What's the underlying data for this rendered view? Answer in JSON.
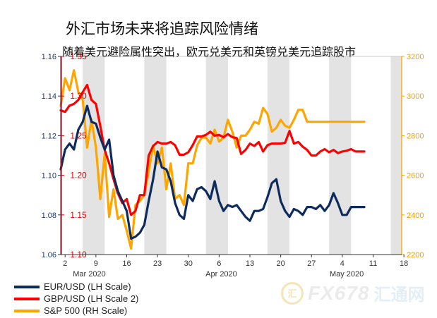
{
  "title": "外汇市场未来将追踪风险情绪",
  "subtitle": "随着美元避险属性突出，欧元兑美元和英镑兑美元追踪股市",
  "watermark": {
    "brand": "FX678",
    "cn": "汇通网",
    "badge": "汇"
  },
  "chart_data": {
    "type": "line",
    "x_tick_labels": [
      "2",
      "9",
      "16",
      "23",
      "30",
      "6",
      "13",
      "20",
      "27",
      "4",
      "11",
      "18"
    ],
    "month_labels": [
      {
        "label": "Mar 2020",
        "x": 6.5
      },
      {
        "label": "Apr 2020",
        "x": 36.5
      },
      {
        "label": "May 2020",
        "x": 65
      }
    ],
    "xlim": [
      0,
      77.5
    ],
    "shaded_weeks": [
      [
        5,
        10
      ],
      [
        19,
        24
      ],
      [
        33,
        38
      ],
      [
        47,
        52
      ],
      [
        61,
        66
      ],
      [
        75,
        77.5
      ]
    ],
    "axes": {
      "left_outer": {
        "name": "EUR/USD",
        "ylim": [
          1.06,
          1.16
        ],
        "ticks": [
          1.06,
          1.08,
          1.1,
          1.12,
          1.14,
          1.16
        ],
        "decimals": 2,
        "color": "#1f3864"
      },
      "left_inner": {
        "name": "GBP/USD",
        "ylim": [
          1.1,
          1.35
        ],
        "ticks": [
          1.1,
          1.15,
          1.2,
          1.25,
          1.3,
          1.35
        ],
        "decimals": 2,
        "color": "#e00000"
      },
      "right": {
        "name": "S&P 500",
        "ylim": [
          2200,
          3200
        ],
        "ticks": [
          2200,
          2400,
          2600,
          2800,
          3000,
          3200
        ],
        "decimals": 0,
        "color": "#f7a000"
      }
    },
    "series": [
      {
        "name": "EUR/USD (LH Scale)",
        "axis": "left_outer",
        "color": "#0d2b5c",
        "x": [
          0,
          1,
          2,
          3,
          4,
          5,
          6,
          7,
          8,
          9,
          10,
          11,
          12,
          13,
          14,
          15,
          16,
          17,
          18,
          19,
          20,
          21,
          22,
          23,
          24,
          25,
          26,
          27,
          28,
          29,
          30,
          31,
          32,
          33,
          34,
          35,
          36,
          37,
          38,
          39,
          40,
          41,
          42,
          43,
          44,
          45,
          46,
          47,
          48,
          49,
          50,
          51,
          52,
          53,
          54,
          55,
          56,
          57,
          58,
          59,
          60,
          61,
          62,
          63,
          64,
          65,
          66,
          67,
          68,
          69
        ],
        "values": [
          1.103,
          1.113,
          1.116,
          1.113,
          1.123,
          1.127,
          1.135,
          1.127,
          1.126,
          1.119,
          1.113,
          1.118,
          1.1,
          1.092,
          1.087,
          1.082,
          1.068,
          1.069,
          1.071,
          1.075,
          1.087,
          1.098,
          1.112,
          1.104,
          1.103,
          1.097,
          1.086,
          1.08,
          1.078,
          1.09,
          1.087,
          1.093,
          1.094,
          1.092,
          1.088,
          1.097,
          1.087,
          1.082,
          1.085,
          1.084,
          1.085,
          1.082,
          1.079,
          1.077,
          1.082,
          1.082,
          1.083,
          1.089,
          1.096,
          1.098,
          1.087,
          1.082,
          1.079,
          1.083,
          1.082,
          1.08,
          1.084,
          1.084,
          1.083,
          1.085,
          1.082,
          1.085,
          1.091,
          1.086,
          1.08,
          1.08,
          1.084,
          1.084,
          1.084,
          1.084
        ]
      },
      {
        "name": "GBP/USD (LH Scale 2)",
        "axis": "left_inner",
        "color": "#ff0000",
        "x": [
          0,
          1,
          2,
          3,
          4,
          5,
          6,
          7,
          8,
          9,
          10,
          11,
          12,
          13,
          14,
          15,
          16,
          17,
          18,
          19,
          20,
          21,
          22,
          23,
          24,
          25,
          26,
          27,
          28,
          29,
          30,
          31,
          32,
          33,
          34,
          35,
          36,
          37,
          38,
          39,
          40,
          41,
          42,
          43,
          44,
          45,
          46,
          47,
          48,
          49,
          50,
          51,
          52,
          53,
          54,
          55,
          56,
          57,
          58,
          59,
          60,
          61,
          62,
          63,
          64,
          65,
          66,
          67,
          68,
          69
        ],
        "values": [
          1.282,
          1.28,
          1.288,
          1.29,
          1.295,
          1.305,
          1.314,
          1.295,
          1.29,
          1.262,
          1.232,
          1.215,
          1.195,
          1.177,
          1.165,
          1.17,
          1.15,
          1.155,
          1.175,
          1.175,
          1.225,
          1.237,
          1.242,
          1.24,
          1.24,
          1.242,
          1.238,
          1.226,
          1.226,
          1.229,
          1.238,
          1.249,
          1.249,
          1.251,
          1.255,
          1.25,
          1.251,
          1.248,
          1.252,
          1.248,
          1.247,
          1.227,
          1.232,
          1.24,
          1.237,
          1.242,
          1.23,
          1.238,
          1.24,
          1.24,
          1.24,
          1.241,
          1.256,
          1.24,
          1.242,
          1.236,
          1.232,
          1.225,
          1.225,
          1.23,
          1.233,
          1.229,
          1.232,
          1.228,
          1.23,
          1.231,
          1.233,
          1.23,
          1.23,
          1.23
        ]
      },
      {
        "name": "S&P 500 (RH Scale)",
        "axis": "right",
        "color": "#ffa500",
        "x": [
          0,
          1,
          2,
          3,
          4,
          5,
          6,
          7,
          8,
          9,
          10,
          11,
          12,
          13,
          14,
          15,
          16,
          17,
          18,
          19,
          20,
          21,
          22,
          23,
          24,
          25,
          26,
          27,
          28,
          29,
          30,
          31,
          32,
          33,
          34,
          35,
          36,
          37,
          38,
          39,
          40,
          41,
          42,
          43,
          44,
          45,
          46,
          47,
          48,
          49,
          50,
          51,
          52,
          53,
          54,
          55,
          56,
          57,
          58,
          59,
          60,
          61,
          62,
          63,
          64,
          65,
          66,
          67,
          68,
          69
        ],
        "values": [
          2950,
          3090,
          3030,
          3130,
          3020,
          2980,
          2740,
          2880,
          2740,
          2480,
          2710,
          2390,
          2530,
          2380,
          2400,
          2320,
          2230,
          2450,
          2470,
          2500,
          2620,
          2750,
          2660,
          2740,
          2530,
          2660,
          2480,
          2500,
          2450,
          2660,
          2660,
          2750,
          2790,
          2790,
          2760,
          2830,
          2770,
          2790,
          2880,
          2820,
          2740,
          2800,
          2800,
          2830,
          2870,
          2860,
          2940,
          2910,
          2820,
          2840,
          2880,
          2850,
          2840,
          2880,
          2930,
          2930,
          2870,
          2870,
          2870,
          2870,
          2870,
          2870,
          2870,
          2870,
          2870,
          2870,
          2870,
          2870,
          2870,
          2870
        ]
      }
    ]
  }
}
